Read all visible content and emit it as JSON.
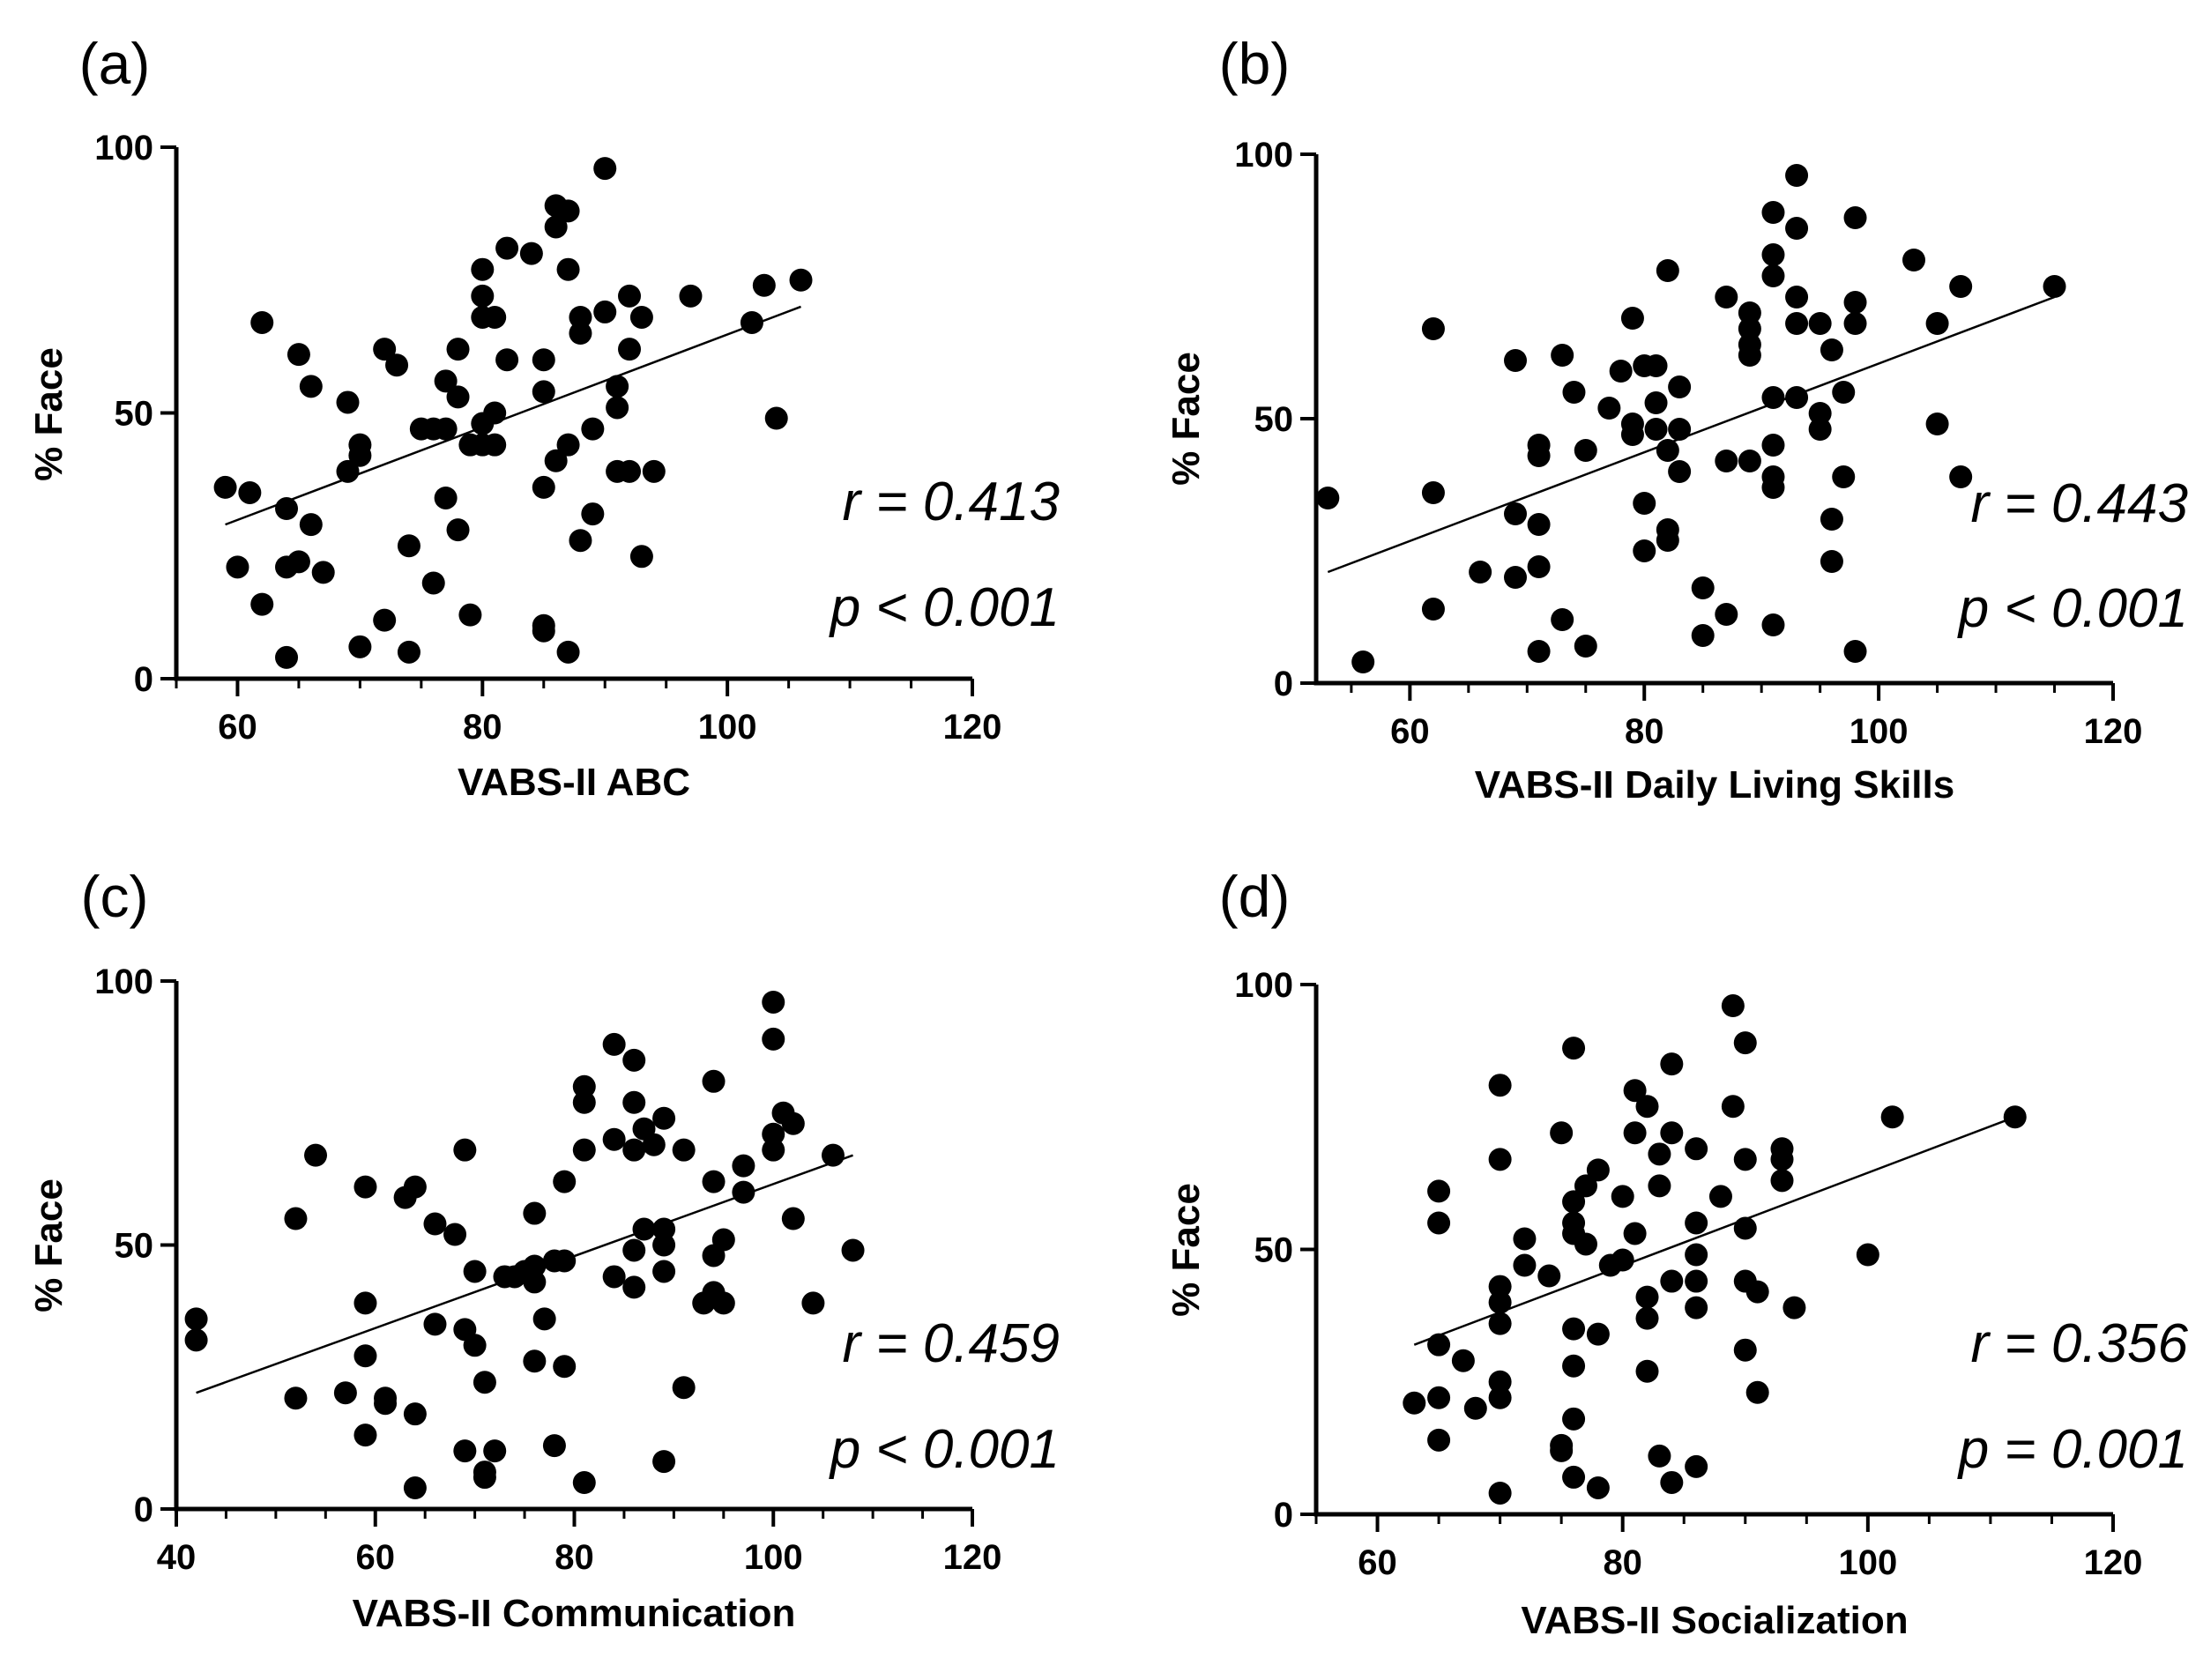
{
  "chart_data": [
    {
      "type": "scatter",
      "panel": "(a)",
      "xlabel": "VABS-II ABC",
      "ylabel": "% Face",
      "xlim": [
        55,
        120
      ],
      "ylim": [
        0,
        100
      ],
      "xticks": [
        60,
        80,
        100,
        120
      ],
      "yticks": [
        0,
        50,
        100
      ],
      "stats": [
        "r = 0.413",
        "p < 0.001"
      ],
      "fit": {
        "x": [
          59,
          106
        ],
        "y": [
          29,
          70
        ]
      },
      "points": [
        [
          59,
          36
        ],
        [
          60,
          21
        ],
        [
          61,
          35
        ],
        [
          62,
          14
        ],
        [
          62,
          67
        ],
        [
          64,
          32
        ],
        [
          64,
          21
        ],
        [
          64,
          4
        ],
        [
          65,
          22
        ],
        [
          65,
          61
        ],
        [
          66,
          29
        ],
        [
          66,
          55
        ],
        [
          67,
          20
        ],
        [
          69,
          52
        ],
        [
          69,
          39
        ],
        [
          70,
          44
        ],
        [
          70,
          42
        ],
        [
          70,
          6
        ],
        [
          72,
          62
        ],
        [
          72,
          11
        ],
        [
          73,
          59
        ],
        [
          74,
          25
        ],
        [
          74,
          5
        ],
        [
          75,
          47
        ],
        [
          76,
          47
        ],
        [
          76,
          18
        ],
        [
          77,
          47
        ],
        [
          77,
          56
        ],
        [
          77,
          34
        ],
        [
          78,
          62
        ],
        [
          78,
          53
        ],
        [
          78,
          28
        ],
        [
          79,
          44
        ],
        [
          79,
          12
        ],
        [
          80,
          44
        ],
        [
          80,
          48
        ],
        [
          80,
          68
        ],
        [
          80,
          72
        ],
        [
          80,
          77
        ],
        [
          81,
          44
        ],
        [
          81,
          50
        ],
        [
          81,
          68
        ],
        [
          82,
          60
        ],
        [
          82,
          81
        ],
        [
          84,
          80
        ],
        [
          85,
          36
        ],
        [
          85,
          54
        ],
        [
          85,
          60
        ],
        [
          85,
          10
        ],
        [
          85,
          9
        ],
        [
          86,
          41
        ],
        [
          86,
          85
        ],
        [
          86,
          89
        ],
        [
          87,
          77
        ],
        [
          87,
          88
        ],
        [
          87,
          44
        ],
        [
          87,
          5
        ],
        [
          88,
          26
        ],
        [
          88,
          65
        ],
        [
          88,
          68
        ],
        [
          89,
          31
        ],
        [
          89,
          47
        ],
        [
          90,
          69
        ],
        [
          90,
          96
        ],
        [
          91,
          39
        ],
        [
          91,
          51
        ],
        [
          91,
          55
        ],
        [
          92,
          39
        ],
        [
          92,
          62
        ],
        [
          92,
          72
        ],
        [
          93,
          23
        ],
        [
          93,
          68
        ],
        [
          94,
          39
        ],
        [
          97,
          72
        ],
        [
          102,
          67
        ],
        [
          103,
          74
        ],
        [
          104,
          49
        ],
        [
          106,
          75
        ]
      ]
    },
    {
      "type": "scatter",
      "panel": "(b)",
      "xlabel": "VABS-II Daily Living Skills",
      "ylabel": "% Face",
      "xlim": [
        52,
        120
      ],
      "ylim": [
        0,
        100
      ],
      "xticks": [
        60,
        80,
        100,
        120
      ],
      "yticks": [
        0,
        50,
        100
      ],
      "stats": [
        "r = 0.443",
        "p < 0.001"
      ],
      "fit": {
        "x": [
          53,
          115
        ],
        "y": [
          21,
          73
        ]
      },
      "points": [
        [
          53,
          35
        ],
        [
          56,
          4
        ],
        [
          62,
          67
        ],
        [
          62,
          36
        ],
        [
          62,
          14
        ],
        [
          66,
          21
        ],
        [
          69,
          61
        ],
        [
          69,
          32
        ],
        [
          69,
          20
        ],
        [
          71,
          45
        ],
        [
          71,
          43
        ],
        [
          71,
          30
        ],
        [
          71,
          22
        ],
        [
          71,
          6
        ],
        [
          73,
          62
        ],
        [
          73,
          12
        ],
        [
          74,
          55
        ],
        [
          75,
          44
        ],
        [
          75,
          7
        ],
        [
          77,
          52
        ],
        [
          78,
          59
        ],
        [
          79,
          69
        ],
        [
          79,
          49
        ],
        [
          79,
          47
        ],
        [
          80,
          60
        ],
        [
          80,
          34
        ],
        [
          80,
          25
        ],
        [
          81,
          60
        ],
        [
          81,
          48
        ],
        [
          81,
          53
        ],
        [
          82,
          78
        ],
        [
          82,
          44
        ],
        [
          82,
          29
        ],
        [
          82,
          27
        ],
        [
          83,
          56
        ],
        [
          83,
          48
        ],
        [
          83,
          40
        ],
        [
          85,
          18
        ],
        [
          85,
          9
        ],
        [
          87,
          73
        ],
        [
          87,
          42
        ],
        [
          87,
          13
        ],
        [
          89,
          70
        ],
        [
          89,
          67
        ],
        [
          89,
          64
        ],
        [
          89,
          62
        ],
        [
          89,
          42
        ],
        [
          91,
          89
        ],
        [
          91,
          81
        ],
        [
          91,
          77
        ],
        [
          91,
          54
        ],
        [
          91,
          45
        ],
        [
          91,
          39
        ],
        [
          91,
          37
        ],
        [
          91,
          11
        ],
        [
          93,
          96
        ],
        [
          93,
          86
        ],
        [
          93,
          73
        ],
        [
          93,
          68
        ],
        [
          93,
          54
        ],
        [
          95,
          68
        ],
        [
          95,
          51
        ],
        [
          95,
          48
        ],
        [
          96,
          63
        ],
        [
          96,
          31
        ],
        [
          96,
          23
        ],
        [
          97,
          55
        ],
        [
          97,
          39
        ],
        [
          98,
          88
        ],
        [
          98,
          72
        ],
        [
          98,
          68
        ],
        [
          98,
          6
        ],
        [
          103,
          80
        ],
        [
          105,
          68
        ],
        [
          105,
          49
        ],
        [
          107,
          75
        ],
        [
          107,
          39
        ],
        [
          115,
          75
        ]
      ]
    },
    {
      "type": "scatter",
      "panel": "(c)",
      "xlabel": "VABS-II Communication",
      "ylabel": "% Face",
      "xlim": [
        40,
        120
      ],
      "ylim": [
        0,
        100
      ],
      "xticks": [
        40,
        60,
        80,
        100,
        120
      ],
      "yticks": [
        0,
        50,
        100
      ],
      "stats": [
        "r = 0.459",
        "p < 0.001"
      ],
      "fit": {
        "x": [
          42,
          108
        ],
        "y": [
          22,
          67
        ]
      },
      "points": [
        [
          42,
          36
        ],
        [
          42,
          32
        ],
        [
          52,
          55
        ],
        [
          52,
          21
        ],
        [
          54,
          67
        ],
        [
          57,
          22
        ],
        [
          59,
          61
        ],
        [
          59,
          39
        ],
        [
          59,
          29
        ],
        [
          59,
          14
        ],
        [
          61,
          21
        ],
        [
          61,
          20
        ],
        [
          63,
          59
        ],
        [
          64,
          61
        ],
        [
          64,
          18
        ],
        [
          64,
          4
        ],
        [
          66,
          54
        ],
        [
          66,
          35
        ],
        [
          68,
          52
        ],
        [
          69,
          68
        ],
        [
          69,
          34
        ],
        [
          69,
          11
        ],
        [
          70,
          45
        ],
        [
          70,
          31
        ],
        [
          71,
          24
        ],
        [
          71,
          7
        ],
        [
          71,
          6
        ],
        [
          72,
          11
        ],
        [
          73,
          44
        ],
        [
          74,
          44
        ],
        [
          75,
          45
        ],
        [
          76,
          56
        ],
        [
          76,
          46
        ],
        [
          76,
          43
        ],
        [
          76,
          28
        ],
        [
          77,
          36
        ],
        [
          78,
          47
        ],
        [
          78,
          12
        ],
        [
          79,
          62
        ],
        [
          79,
          47
        ],
        [
          79,
          27
        ],
        [
          81,
          80
        ],
        [
          81,
          77
        ],
        [
          81,
          68
        ],
        [
          81,
          5
        ],
        [
          84,
          88
        ],
        [
          84,
          70
        ],
        [
          84,
          44
        ],
        [
          86,
          85
        ],
        [
          86,
          77
        ],
        [
          86,
          68
        ],
        [
          86,
          49
        ],
        [
          86,
          42
        ],
        [
          87,
          72
        ],
        [
          87,
          53
        ],
        [
          88,
          69
        ],
        [
          89,
          74
        ],
        [
          89,
          53
        ],
        [
          89,
          50
        ],
        [
          89,
          45
        ],
        [
          89,
          9
        ],
        [
          91,
          68
        ],
        [
          91,
          23
        ],
        [
          93,
          39
        ],
        [
          94,
          81
        ],
        [
          94,
          62
        ],
        [
          94,
          48
        ],
        [
          94,
          41
        ],
        [
          95,
          51
        ],
        [
          95,
          39
        ],
        [
          97,
          60
        ],
        [
          97,
          65
        ],
        [
          100,
          96
        ],
        [
          100,
          89
        ],
        [
          100,
          71
        ],
        [
          100,
          68
        ],
        [
          101,
          75
        ],
        [
          102,
          73
        ],
        [
          102,
          55
        ],
        [
          104,
          39
        ],
        [
          106,
          67
        ],
        [
          108,
          49
        ]
      ]
    },
    {
      "type": "scatter",
      "panel": "(d)",
      "xlabel": "VABS-II Socialization",
      "ylabel": "% Face",
      "xlim": [
        55,
        120
      ],
      "ylim": [
        0,
        100
      ],
      "xticks": [
        60,
        80,
        100,
        120
      ],
      "yticks": [
        0,
        50,
        100
      ],
      "stats": [
        "r = 0.356",
        "p = 0.001"
      ],
      "fit": {
        "x": [
          63,
          112
        ],
        "y": [
          32,
          75
        ]
      },
      "points": [
        [
          63,
          21
        ],
        [
          65,
          61
        ],
        [
          65,
          55
        ],
        [
          65,
          32
        ],
        [
          65,
          22
        ],
        [
          65,
          14
        ],
        [
          67,
          29
        ],
        [
          68,
          20
        ],
        [
          70,
          81
        ],
        [
          70,
          67
        ],
        [
          70,
          43
        ],
        [
          70,
          40
        ],
        [
          70,
          36
        ],
        [
          70,
          25
        ],
        [
          70,
          22
        ],
        [
          70,
          4
        ],
        [
          72,
          52
        ],
        [
          72,
          47
        ],
        [
          74,
          45
        ],
        [
          75,
          72
        ],
        [
          75,
          13
        ],
        [
          75,
          12
        ],
        [
          76,
          88
        ],
        [
          76,
          59
        ],
        [
          76,
          55
        ],
        [
          76,
          53
        ],
        [
          76,
          35
        ],
        [
          76,
          28
        ],
        [
          76,
          18
        ],
        [
          76,
          7
        ],
        [
          77,
          62
        ],
        [
          77,
          51
        ],
        [
          78,
          65
        ],
        [
          78,
          34
        ],
        [
          78,
          5
        ],
        [
          79,
          47
        ],
        [
          80,
          60
        ],
        [
          80,
          48
        ],
        [
          81,
          80
        ],
        [
          81,
          72
        ],
        [
          81,
          53
        ],
        [
          82,
          77
        ],
        [
          82,
          41
        ],
        [
          82,
          37
        ],
        [
          82,
          27
        ],
        [
          83,
          62
        ],
        [
          83,
          68
        ],
        [
          83,
          11
        ],
        [
          84,
          85
        ],
        [
          84,
          72
        ],
        [
          84,
          44
        ],
        [
          84,
          6
        ],
        [
          86,
          69
        ],
        [
          86,
          55
        ],
        [
          86,
          49
        ],
        [
          86,
          44
        ],
        [
          86,
          39
        ],
        [
          86,
          9
        ],
        [
          88,
          60
        ],
        [
          89,
          96
        ],
        [
          89,
          77
        ],
        [
          90,
          89
        ],
        [
          90,
          67
        ],
        [
          90,
          54
        ],
        [
          90,
          44
        ],
        [
          90,
          31
        ],
        [
          91,
          42
        ],
        [
          91,
          23
        ],
        [
          93,
          69
        ],
        [
          93,
          67
        ],
        [
          93,
          63
        ],
        [
          94,
          39
        ],
        [
          100,
          49
        ],
        [
          102,
          75
        ],
        [
          112,
          75
        ]
      ]
    }
  ]
}
